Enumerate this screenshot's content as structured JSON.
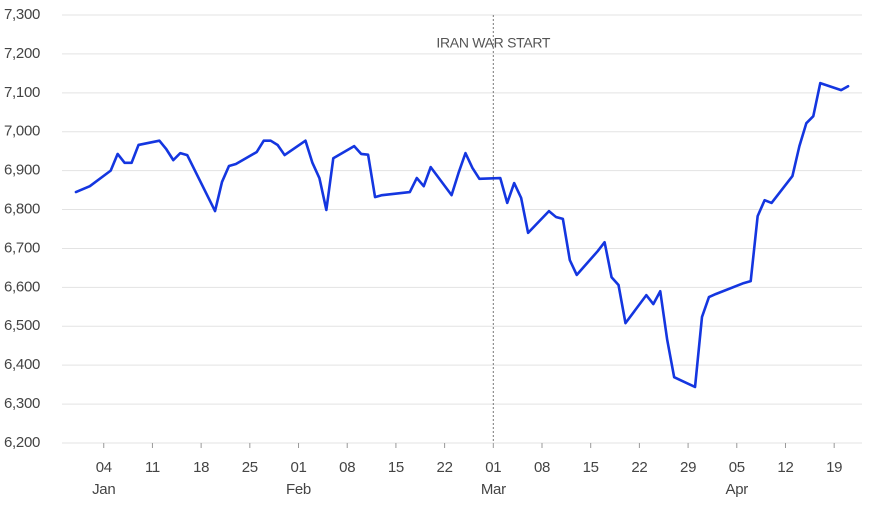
{
  "chart_data": {
    "type": "line",
    "x": [
      "12-31",
      "01-02",
      "01-05",
      "01-06",
      "01-07",
      "01-08",
      "01-09",
      "01-12",
      "01-13",
      "01-14",
      "01-15",
      "01-16",
      "01-20",
      "01-21",
      "01-22",
      "01-23",
      "01-26",
      "01-27",
      "01-28",
      "01-29",
      "01-30",
      "02-02",
      "02-03",
      "02-04",
      "02-05",
      "02-06",
      "02-09",
      "02-10",
      "02-11",
      "02-12",
      "02-13",
      "02-17",
      "02-18",
      "02-19",
      "02-20",
      "02-23",
      "02-24",
      "02-25",
      "02-26",
      "02-27",
      "03-02",
      "03-03",
      "03-04",
      "03-05",
      "03-06",
      "03-09",
      "03-10",
      "03-11",
      "03-12",
      "03-13",
      "03-16",
      "03-17",
      "03-18",
      "03-19",
      "03-20",
      "03-23",
      "03-24",
      "03-25",
      "03-26",
      "03-27",
      "03-30",
      "03-31",
      "04-01",
      "04-02",
      "04-06",
      "04-07",
      "04-08",
      "04-09",
      "04-10",
      "04-13",
      "04-14",
      "04-15",
      "04-16",
      "04-17",
      "04-20",
      "04-21"
    ],
    "values": [
      6845,
      6860,
      6900,
      6943,
      6920,
      6920,
      6966,
      6977,
      6955,
      6927,
      6945,
      6940,
      6796,
      6871,
      6912,
      6917,
      6948,
      6977,
      6977,
      6966,
      6940,
      6977,
      6920,
      6881,
      6799,
      6932,
      6963,
      6943,
      6941,
      6832,
      6837,
      6845,
      6881,
      6860,
      6909,
      6837,
      6894,
      6945,
      6907,
      6879,
      6881,
      6817,
      6868,
      6830,
      6740,
      6796,
      6781,
      6776,
      6670,
      6632,
      6693,
      6716,
      6626,
      6606,
      6508,
      6580,
      6557,
      6590,
      6465,
      6369,
      6344,
      6524,
      6575,
      6583,
      6611,
      6616,
      6783,
      6824,
      6817,
      6886,
      6963,
      7022,
      7040,
      7125,
      7107,
      7117
    ],
    "color": "#1436e0",
    "xlim": [
      "12-29",
      "04-23"
    ],
    "xticks": [
      {
        "value": "01-04",
        "label": "04"
      },
      {
        "value": "01-11",
        "label": "11"
      },
      {
        "value": "01-18",
        "label": "18"
      },
      {
        "value": "01-25",
        "label": "25"
      },
      {
        "value": "02-01",
        "label": "01"
      },
      {
        "value": "02-08",
        "label": "08"
      },
      {
        "value": "02-15",
        "label": "15"
      },
      {
        "value": "02-22",
        "label": "22"
      },
      {
        "value": "03-01",
        "label": "01"
      },
      {
        "value": "03-08",
        "label": "08"
      },
      {
        "value": "03-15",
        "label": "15"
      },
      {
        "value": "03-22",
        "label": "22"
      },
      {
        "value": "03-29",
        "label": "29"
      },
      {
        "value": "04-05",
        "label": "05"
      },
      {
        "value": "04-12",
        "label": "12"
      },
      {
        "value": "04-19",
        "label": "19"
      }
    ],
    "xmonths": [
      {
        "value": "01-04",
        "label": "Jan"
      },
      {
        "value": "02-01",
        "label": "Feb"
      },
      {
        "value": "03-01",
        "label": "Mar"
      },
      {
        "value": "04-05",
        "label": "Apr"
      }
    ],
    "ylim": [
      6200,
      7300
    ],
    "yticks": [
      {
        "value": 6200,
        "label": "6,200"
      },
      {
        "value": 6300,
        "label": "6,300"
      },
      {
        "value": 6400,
        "label": "6,400"
      },
      {
        "value": 6500,
        "label": "6,500"
      },
      {
        "value": 6600,
        "label": "6,600"
      },
      {
        "value": 6700,
        "label": "6,700"
      },
      {
        "value": 6800,
        "label": "6,800"
      },
      {
        "value": 6900,
        "label": "6,900"
      },
      {
        "value": 7000,
        "label": "7,000"
      },
      {
        "value": 7100,
        "label": "7,100"
      },
      {
        "value": 7200,
        "label": "7,200"
      },
      {
        "value": 7300,
        "label": "7,300"
      }
    ],
    "grid": true,
    "annotation": {
      "text": "IRAN WAR START",
      "x": "03-01"
    }
  }
}
